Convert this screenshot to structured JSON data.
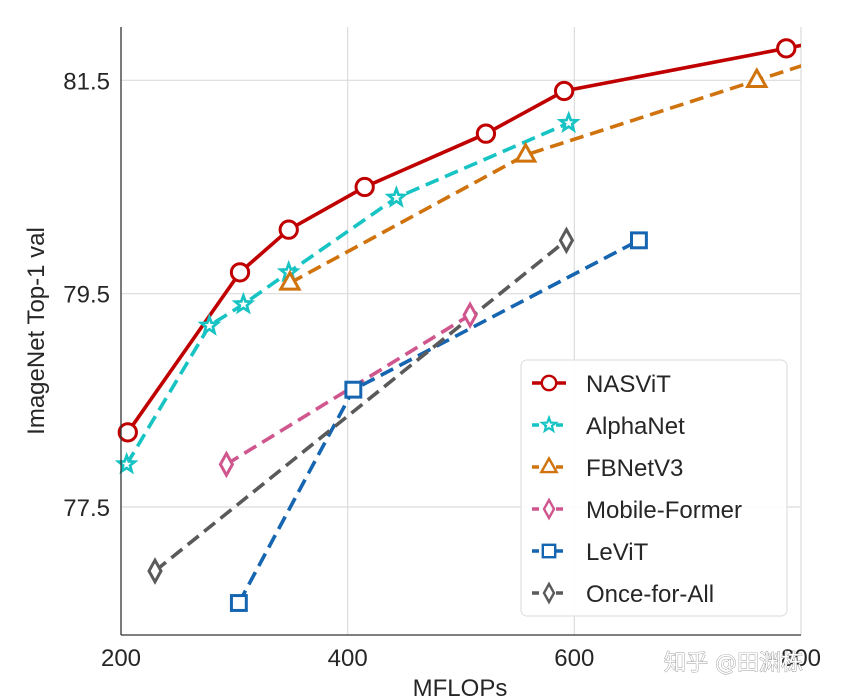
{
  "chart_data": {
    "type": "line",
    "title": "",
    "xlabel": "MFLOPs",
    "ylabel": "ImageNet Top-1 val",
    "xlim": [
      200,
      800
    ],
    "ylim": [
      76.3,
      82.0
    ],
    "xticks": [
      200,
      400,
      600,
      800
    ],
    "xtick_labels": [
      "200",
      "400",
      "600",
      "800"
    ],
    "yticks": [
      77.5,
      79.5,
      81.5
    ],
    "ytick_labels": [
      "77.5",
      "79.5",
      "81.5"
    ],
    "grid": true,
    "legend_position": "lower-right",
    "series": [
      {
        "name": "NASViT",
        "color": "#c00000",
        "marker": "circle",
        "linestyle": "solid",
        "extends_beyond_xlim": true,
        "x": [
          206,
          305,
          348,
          415,
          522,
          591,
          787
        ],
        "y": [
          78.2,
          79.7,
          80.1,
          80.5,
          81.0,
          81.4,
          81.8
        ]
      },
      {
        "name": "AlphaNet",
        "color": "#17c3c3",
        "marker": "star",
        "linestyle": "dashed",
        "extends_beyond_xlim": false,
        "x": [
          205,
          278,
          308,
          348,
          443,
          595
        ],
        "y": [
          77.9,
          79.2,
          79.4,
          79.7,
          80.4,
          81.1
        ]
      },
      {
        "name": "FBNetV3",
        "color": "#d0730d",
        "marker": "triangle",
        "linestyle": "dashed",
        "extends_beyond_xlim": true,
        "x": [
          349,
          557,
          761
        ],
        "y": [
          79.6,
          80.8,
          81.5
        ]
      },
      {
        "name": "Mobile-Former",
        "color": "#d0568e",
        "marker": "thin-diamond",
        "linestyle": "dashed",
        "extends_beyond_xlim": false,
        "x": [
          293,
          508
        ],
        "y": [
          77.9,
          79.3
        ]
      },
      {
        "name": "LeViT",
        "color": "#1565b0",
        "marker": "square",
        "linestyle": "dashed",
        "extends_beyond_xlim": false,
        "x": [
          304,
          405,
          657
        ],
        "y": [
          76.6,
          78.6,
          80.0
        ]
      },
      {
        "name": "Once-for-All",
        "color": "#5a5a5a",
        "marker": "thin-diamond",
        "linestyle": "dashed",
        "extends_beyond_xlim": false,
        "x": [
          230,
          593
        ],
        "y": [
          76.9,
          80.0
        ]
      }
    ]
  },
  "watermark": "知乎 @田渊栋"
}
